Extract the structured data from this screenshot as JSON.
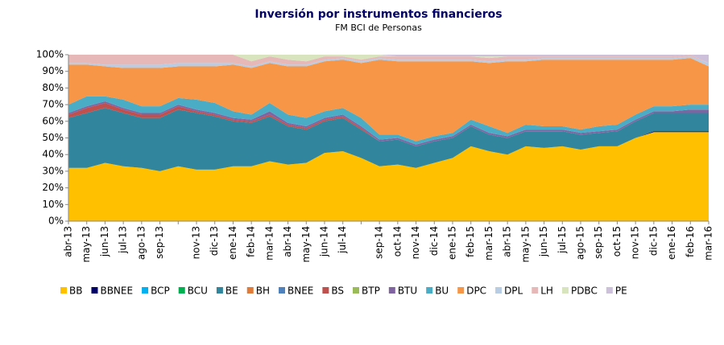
{
  "chart_data": {
    "type": "stacked_area",
    "title": "Inversión por instrumentos financieros",
    "subtitle": "FM BCI de Personas",
    "categories": [
      "abr-13",
      "may-13",
      "jun-13",
      "jul-13",
      "ago-13",
      "sep-13",
      null,
      "nov-13",
      "dic-13",
      "ene-14",
      "feb-14",
      "mar-14",
      "abr-14",
      "may-14",
      "jun-14",
      "jul-14",
      null,
      "sep-14",
      "oct-14",
      "nov-14",
      "dic-14",
      "ene-15",
      "feb-15",
      "mar-15",
      "abr-15",
      "may-15",
      "jun-15",
      "jul-15",
      "ago-15",
      "sep-15",
      "oct-15",
      "nov-15",
      "dic-15",
      "ene-16",
      "feb-16",
      "mar-16"
    ],
    "ylim": [
      0,
      100
    ],
    "yticks": [
      {
        "value": 0,
        "label": "0%"
      },
      {
        "value": 10,
        "label": "10%"
      },
      {
        "value": 20,
        "label": "20%"
      },
      {
        "value": 30,
        "label": "30%"
      },
      {
        "value": 40,
        "label": "40%"
      },
      {
        "value": 50,
        "label": "50%"
      },
      {
        "value": 60,
        "label": "60%"
      },
      {
        "value": 70,
        "label": "70%"
      },
      {
        "value": 80,
        "label": "80%"
      },
      {
        "value": 90,
        "label": "90%"
      },
      {
        "value": 100,
        "label": "100%"
      }
    ],
    "series": [
      {
        "name": "BB",
        "color": "#FFC000",
        "values": [
          32,
          32,
          35,
          33,
          32,
          30,
          33,
          31,
          31,
          33,
          33,
          36,
          34,
          35,
          41,
          42,
          38,
          33,
          34,
          32,
          35,
          38,
          45,
          42,
          40,
          45,
          44,
          45,
          43,
          45,
          45,
          50,
          53.5,
          53.5,
          53.5,
          53.5
        ]
      },
      {
        "name": "BBNEE",
        "color": "#000066",
        "values": [
          0,
          0,
          0,
          0,
          0,
          0,
          0,
          0,
          0,
          0,
          0,
          0,
          0,
          0,
          0,
          0,
          0,
          0,
          0,
          0,
          0,
          0,
          0,
          0,
          0,
          0,
          0,
          0,
          0,
          0,
          0,
          0,
          0.5,
          0.5,
          0.5,
          0.5
        ]
      },
      {
        "name": "BCP",
        "color": "#00B0F0",
        "values": [
          0,
          0,
          0,
          0,
          0,
          0,
          0,
          0,
          0,
          0,
          0,
          0,
          0,
          0,
          0,
          0,
          0,
          0,
          0,
          0,
          0,
          0,
          0,
          0,
          0,
          0,
          0,
          0,
          0,
          0,
          0,
          0,
          0,
          0,
          0,
          0
        ]
      },
      {
        "name": "BCU",
        "color": "#00B050",
        "values": [
          0,
          0,
          0,
          0,
          0,
          0,
          0,
          0,
          0,
          0,
          0,
          0,
          0,
          0,
          0,
          0,
          0,
          0,
          0,
          0,
          0,
          0,
          0,
          0,
          0,
          0,
          0,
          0,
          0,
          0,
          0,
          0,
          0,
          0,
          0,
          0
        ]
      },
      {
        "name": "BE",
        "color": "#31859C",
        "values": [
          30,
          33,
          33,
          32,
          30,
          32,
          34,
          34,
          32,
          27,
          26,
          27,
          23,
          20,
          19,
          20,
          17,
          15,
          15,
          13,
          13,
          12,
          12,
          10,
          10,
          9,
          10,
          9,
          9,
          8,
          9,
          10,
          11,
          11,
          11,
          11
        ]
      },
      {
        "name": "BH",
        "color": "#E07B39",
        "values": [
          0,
          0,
          0,
          0,
          0,
          0,
          0,
          0,
          0,
          0,
          0,
          0,
          0,
          0,
          0,
          0,
          0,
          0,
          0,
          0,
          0,
          0,
          0,
          0,
          0,
          0,
          0,
          0,
          0,
          0,
          0,
          0,
          0,
          0,
          0,
          0
        ]
      },
      {
        "name": "BNEE",
        "color": "#4F81BD",
        "values": [
          0,
          0,
          0,
          0,
          0,
          0,
          0,
          0,
          0,
          0,
          0,
          0,
          0,
          0,
          0,
          0,
          0,
          0,
          0,
          0,
          0,
          0,
          0,
          0,
          0,
          0,
          0,
          0,
          0,
          0,
          0,
          0,
          0,
          0,
          0,
          0
        ]
      },
      {
        "name": "BS",
        "color": "#C0504D",
        "values": [
          2,
          3,
          3,
          2,
          2,
          2,
          2,
          1,
          1,
          1,
          1,
          1,
          1,
          1,
          1,
          1,
          1,
          0,
          0,
          0,
          0,
          0,
          0,
          0,
          0,
          0,
          0,
          0,
          0,
          0,
          0,
          0,
          0,
          0,
          0,
          0
        ]
      },
      {
        "name": "BTP",
        "color": "#9BBB59",
        "values": [
          0,
          0,
          0,
          0,
          0,
          0,
          0,
          0,
          0,
          0,
          0,
          0,
          0,
          0,
          0,
          0,
          0,
          0,
          0,
          0,
          0,
          0,
          0,
          0,
          0,
          0,
          0,
          0,
          0,
          0,
          0,
          0,
          0,
          0,
          0,
          0
        ]
      },
      {
        "name": "BTU",
        "color": "#8064A2",
        "values": [
          1,
          1,
          1,
          1,
          1,
          1,
          1,
          1,
          1,
          1,
          1,
          2,
          1,
          1,
          1,
          1,
          1,
          1,
          1,
          1,
          1,
          1,
          1,
          1,
          1,
          1,
          1,
          1,
          1,
          1,
          1,
          1,
          1,
          1,
          2,
          2
        ]
      },
      {
        "name": "BU",
        "color": "#4BACC6",
        "values": [
          5,
          6,
          3,
          5,
          4,
          4,
          4,
          6,
          6,
          4,
          3,
          5,
          5,
          5,
          4,
          4,
          5,
          3,
          2,
          2,
          2,
          2,
          3,
          4,
          2,
          3,
          2,
          2,
          2,
          3,
          3,
          3,
          3,
          3,
          3,
          3
        ]
      },
      {
        "name": "DPC",
        "color": "#F79646",
        "values": [
          24,
          19,
          18,
          19,
          23,
          23,
          19,
          20,
          22,
          28,
          28,
          24,
          29,
          31,
          30,
          29,
          33,
          45,
          44,
          48,
          45,
          43,
          35,
          38,
          43,
          38,
          40,
          40,
          42,
          40,
          39,
          33,
          28,
          28,
          28,
          23
        ]
      },
      {
        "name": "DPL",
        "color": "#B8CCE4",
        "values": [
          1,
          1,
          1,
          2,
          2,
          2,
          2,
          2,
          2,
          1,
          1,
          1,
          1,
          1,
          1,
          1,
          1,
          1,
          1,
          1,
          1,
          1,
          1,
          1,
          1,
          1,
          1,
          1,
          1,
          1,
          1,
          1,
          1,
          1,
          1,
          2
        ]
      },
      {
        "name": "LH",
        "color": "#E6B9B8",
        "values": [
          5,
          5,
          6,
          6,
          6,
          6,
          5,
          5,
          5,
          5,
          3,
          3,
          3,
          2,
          2,
          1,
          1,
          1,
          2,
          2,
          2,
          2,
          2,
          2,
          2,
          2,
          1,
          1,
          1,
          1,
          1,
          1,
          1,
          1,
          1,
          0
        ]
      },
      {
        "name": "PDBC",
        "color": "#D7E4BD",
        "values": [
          0,
          0,
          0,
          0,
          0,
          0,
          0,
          0,
          0,
          0,
          4,
          1,
          3,
          4,
          1,
          1,
          3,
          1,
          0,
          0,
          0,
          0,
          0,
          1,
          0,
          0,
          0,
          0,
          0,
          0,
          0,
          0,
          0,
          0,
          0,
          0
        ]
      },
      {
        "name": "PE",
        "color": "#CCC0DA",
        "values": [
          0,
          0,
          0,
          0,
          0,
          0,
          0,
          0,
          0,
          0,
          0,
          0,
          0,
          0,
          0,
          0,
          0,
          0,
          1,
          1,
          1,
          1,
          1,
          1,
          1,
          1,
          1,
          1,
          1,
          1,
          1,
          1,
          1,
          1,
          0,
          5
        ]
      }
    ]
  }
}
